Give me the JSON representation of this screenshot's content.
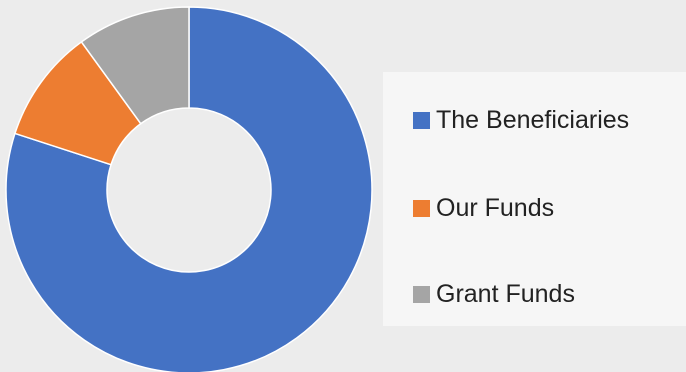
{
  "chart_data": {
    "type": "pie",
    "donut": true,
    "categories": [
      "The Beneficiaries",
      "Our Funds",
      "Grant Funds"
    ],
    "values": [
      80,
      10,
      10
    ],
    "colors": [
      "#4472c4",
      "#ed7d31",
      "#a5a5a5"
    ],
    "title": "",
    "legend_position": "right"
  }
}
